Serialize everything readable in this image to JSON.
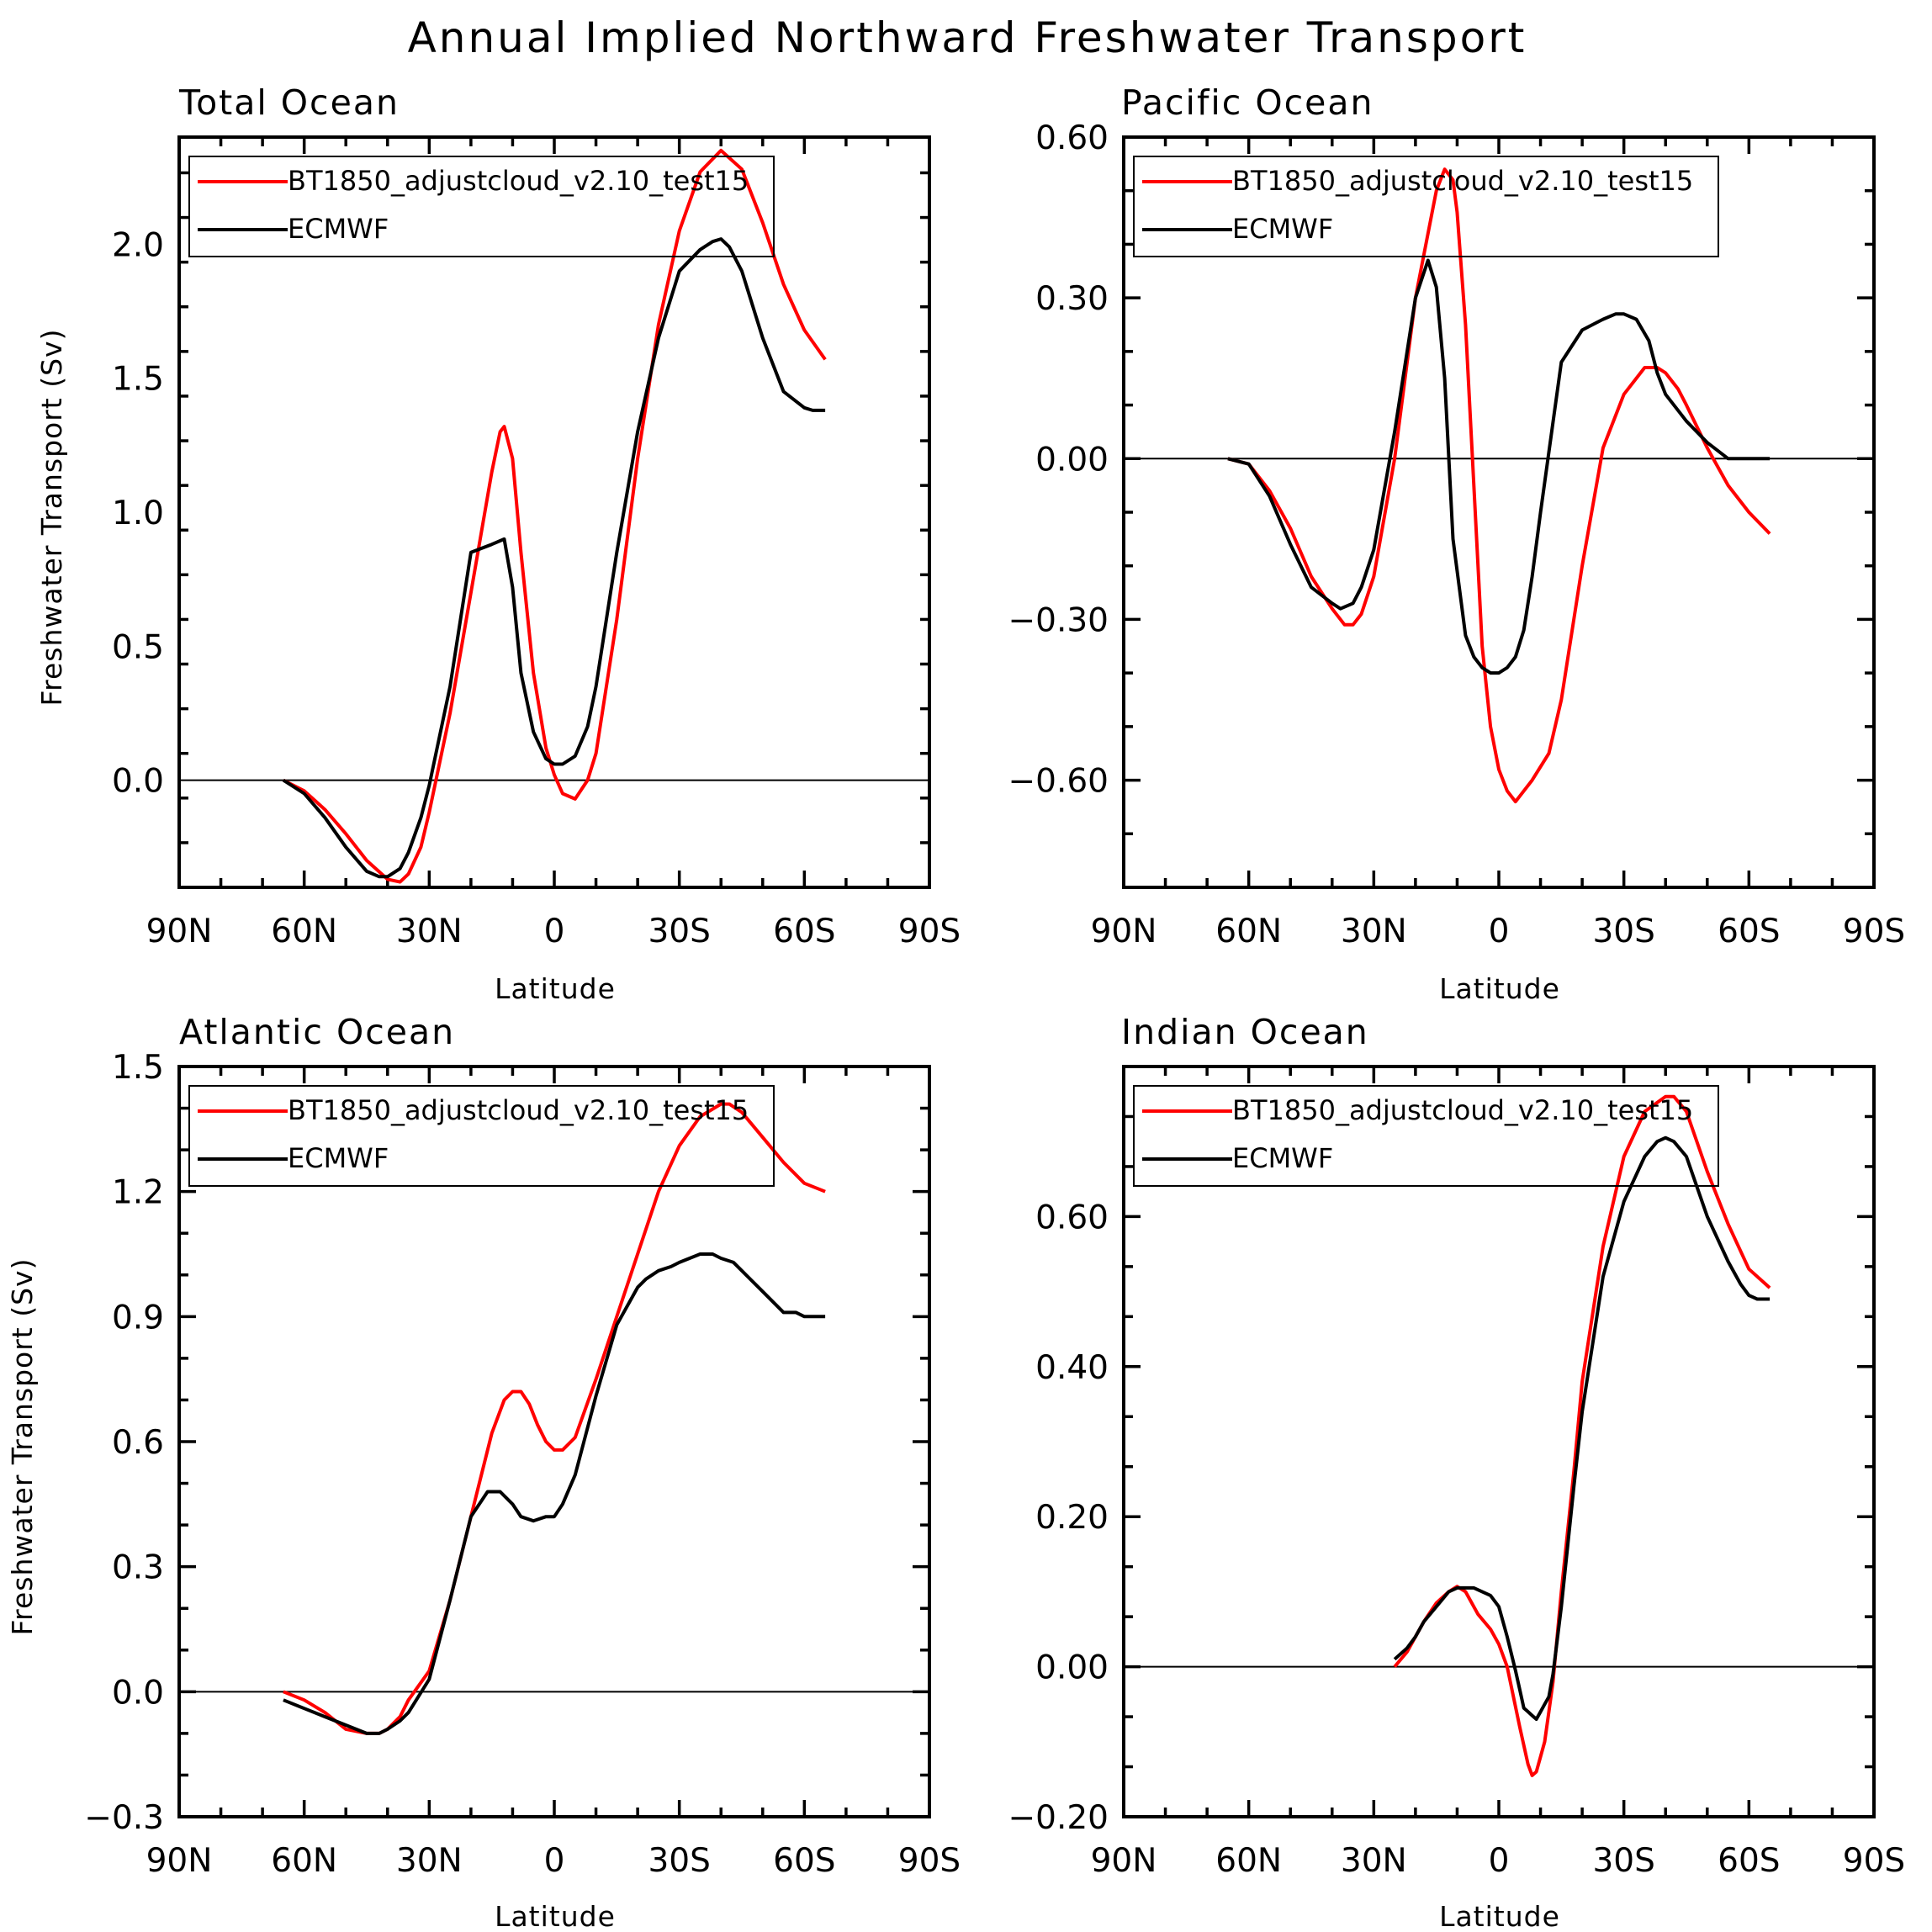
{
  "figure_title": "Annual Implied Northward Freshwater Transport",
  "colors": {
    "model": "#ff0000",
    "obs": "#000000"
  },
  "chart_data": [
    {
      "type": "line",
      "title": "Total Ocean",
      "xlabel": "Latitude",
      "ylabel": "Freshwater Transport (Sv)",
      "xlim": [
        90,
        -90
      ],
      "ylim": [
        -0.4,
        2.4
      ],
      "yticks": [
        0.0,
        0.5,
        1.0,
        1.5,
        2.0
      ],
      "ytick_labels": [
        "0.0",
        "0.5",
        "1.0",
        "1.5",
        "2.0"
      ],
      "xticks": [
        90,
        60,
        30,
        0,
        -30,
        -60,
        -90
      ],
      "xtick_labels": [
        "90N",
        "60N",
        "30N",
        "0",
        "30S",
        "60S",
        "90S"
      ],
      "legend": "top",
      "series": [
        {
          "name": "BT1850_adjustcloud_v2.10_test15",
          "color": "#ff0000",
          "x": [
            65,
            60,
            55,
            50,
            45,
            40,
            37,
            35,
            32,
            30,
            25,
            20,
            15,
            13,
            12,
            10,
            8,
            5,
            2,
            0,
            -2,
            -5,
            -8,
            -10,
            -15,
            -20,
            -25,
            -30,
            -35,
            -40,
            -45,
            -50,
            -55,
            -60,
            -65
          ],
          "y": [
            0.0,
            -0.04,
            -0.11,
            -0.2,
            -0.3,
            -0.37,
            -0.38,
            -0.35,
            -0.25,
            -0.12,
            0.25,
            0.7,
            1.15,
            1.3,
            1.32,
            1.2,
            0.85,
            0.4,
            0.12,
            0.02,
            -0.05,
            -0.07,
            0.0,
            0.1,
            0.6,
            1.2,
            1.7,
            2.05,
            2.27,
            2.35,
            2.28,
            2.08,
            1.85,
            1.68,
            1.57
          ]
        },
        {
          "name": "ECMWF",
          "color": "#000000",
          "x": [
            65,
            60,
            55,
            50,
            45,
            42,
            40,
            37,
            35,
            32,
            30,
            25,
            20,
            15,
            12,
            10,
            8,
            5,
            2,
            0,
            -2,
            -5,
            -8,
            -10,
            -15,
            -20,
            -25,
            -30,
            -35,
            -38,
            -40,
            -42,
            -45,
            -50,
            -55,
            -60,
            -62,
            -65
          ],
          "y": [
            0.0,
            -0.05,
            -0.14,
            -0.25,
            -0.34,
            -0.36,
            -0.36,
            -0.33,
            -0.27,
            -0.14,
            -0.02,
            0.35,
            0.85,
            0.88,
            0.9,
            0.72,
            0.4,
            0.18,
            0.08,
            0.06,
            0.06,
            0.09,
            0.2,
            0.35,
            0.85,
            1.3,
            1.65,
            1.9,
            1.98,
            2.01,
            2.02,
            1.99,
            1.9,
            1.65,
            1.45,
            1.39,
            1.38,
            1.38
          ]
        }
      ]
    },
    {
      "type": "line",
      "title": "Pacific Ocean",
      "xlabel": "Latitude",
      "ylabel": "",
      "xlim": [
        90,
        -90
      ],
      "ylim": [
        -0.8,
        0.6
      ],
      "yticks": [
        -0.6,
        -0.3,
        0.0,
        0.3,
        0.6
      ],
      "ytick_labels": [
        "−0.60",
        "−0.30",
        "0.00",
        "0.30",
        "0.60"
      ],
      "xticks": [
        90,
        60,
        30,
        0,
        -30,
        -60,
        -90
      ],
      "xtick_labels": [
        "90N",
        "60N",
        "30N",
        "0",
        "30S",
        "60S",
        "90S"
      ],
      "legend": "top",
      "series": [
        {
          "name": "BT1850_adjustcloud_v2.10_test15",
          "color": "#ff0000",
          "x": [
            65,
            60,
            55,
            50,
            45,
            40,
            37,
            35,
            33,
            30,
            25,
            20,
            15,
            13,
            11,
            10,
            8,
            6,
            4,
            2,
            0,
            -2,
            -4,
            -5,
            -8,
            -12,
            -15,
            -20,
            -25,
            -30,
            -35,
            -38,
            -40,
            -43,
            -45,
            -50,
            -55,
            -60,
            -65
          ],
          "y": [
            0.0,
            -0.01,
            -0.06,
            -0.13,
            -0.22,
            -0.28,
            -0.31,
            -0.31,
            -0.29,
            -0.22,
            0.0,
            0.3,
            0.5,
            0.54,
            0.52,
            0.46,
            0.25,
            -0.05,
            -0.35,
            -0.5,
            -0.58,
            -0.62,
            -0.64,
            -0.63,
            -0.6,
            -0.55,
            -0.45,
            -0.2,
            0.02,
            0.12,
            0.17,
            0.17,
            0.16,
            0.13,
            0.1,
            0.02,
            -0.05,
            -0.1,
            -0.14
          ]
        },
        {
          "name": "ECMWF",
          "color": "#000000",
          "x": [
            65,
            60,
            55,
            50,
            45,
            40,
            38,
            35,
            33,
            30,
            25,
            20,
            17,
            15,
            13,
            11,
            8,
            6,
            4,
            2,
            0,
            -2,
            -4,
            -6,
            -8,
            -10,
            -15,
            -20,
            -25,
            -28,
            -30,
            -33,
            -36,
            -38,
            -40,
            -45,
            -50,
            -55,
            -60,
            -63,
            -65
          ],
          "y": [
            0.0,
            -0.01,
            -0.07,
            -0.16,
            -0.24,
            -0.27,
            -0.28,
            -0.27,
            -0.24,
            -0.17,
            0.05,
            0.3,
            0.37,
            0.32,
            0.15,
            -0.15,
            -0.33,
            -0.37,
            -0.39,
            -0.4,
            -0.4,
            -0.39,
            -0.37,
            -0.32,
            -0.22,
            -0.1,
            0.18,
            0.24,
            0.26,
            0.27,
            0.27,
            0.26,
            0.22,
            0.16,
            0.12,
            0.07,
            0.03,
            0.0,
            0.0,
            0.0,
            0.0
          ]
        }
      ]
    },
    {
      "type": "line",
      "title": "Atlantic Ocean",
      "xlabel": "Latitude",
      "ylabel": "Freshwater Transport (Sv)",
      "xlim": [
        90,
        -90
      ],
      "ylim": [
        -0.3,
        1.5
      ],
      "yticks": [
        -0.3,
        0.0,
        0.3,
        0.6,
        0.9,
        1.2,
        1.5
      ],
      "ytick_labels": [
        "−0.3",
        "0.0",
        "0.3",
        "0.6",
        "0.9",
        "1.2",
        "1.5"
      ],
      "xticks": [
        90,
        60,
        30,
        0,
        -30,
        -60,
        -90
      ],
      "xtick_labels": [
        "90N",
        "60N",
        "30N",
        "0",
        "30S",
        "60S",
        "90S"
      ],
      "legend": "top",
      "series": [
        {
          "name": "BT1850_adjustcloud_v2.10_test15",
          "color": "#ff0000",
          "x": [
            65,
            60,
            55,
            50,
            45,
            42,
            40,
            37,
            35,
            30,
            25,
            20,
            15,
            12,
            10,
            8,
            6,
            4,
            2,
            0,
            -2,
            -5,
            -10,
            -15,
            -20,
            -25,
            -30,
            -35,
            -40,
            -42,
            -45,
            -50,
            -55,
            -60,
            -65
          ],
          "y": [
            0.0,
            -0.02,
            -0.05,
            -0.09,
            -0.1,
            -0.1,
            -0.09,
            -0.06,
            -0.02,
            0.05,
            0.22,
            0.42,
            0.62,
            0.7,
            0.72,
            0.72,
            0.69,
            0.64,
            0.6,
            0.58,
            0.58,
            0.61,
            0.75,
            0.9,
            1.05,
            1.2,
            1.31,
            1.38,
            1.41,
            1.41,
            1.39,
            1.33,
            1.27,
            1.22,
            1.2
          ]
        },
        {
          "name": "ECMWF",
          "color": "#000000",
          "x": [
            65,
            60,
            55,
            50,
            45,
            42,
            40,
            37,
            35,
            30,
            25,
            20,
            16,
            15,
            13,
            10,
            8,
            5,
            2,
            0,
            -2,
            -5,
            -10,
            -15,
            -20,
            -22,
            -25,
            -28,
            -30,
            -35,
            -38,
            -40,
            -43,
            -45,
            -50,
            -55,
            -58,
            -60,
            -62,
            -65
          ],
          "y": [
            -0.02,
            -0.04,
            -0.06,
            -0.08,
            -0.1,
            -0.1,
            -0.09,
            -0.07,
            -0.05,
            0.03,
            0.22,
            0.42,
            0.48,
            0.48,
            0.48,
            0.45,
            0.42,
            0.41,
            0.42,
            0.42,
            0.45,
            0.52,
            0.71,
            0.88,
            0.97,
            0.99,
            1.01,
            1.02,
            1.03,
            1.05,
            1.05,
            1.04,
            1.03,
            1.01,
            0.96,
            0.91,
            0.91,
            0.9,
            0.9,
            0.9
          ]
        }
      ]
    },
    {
      "type": "line",
      "title": "Indian Ocean",
      "xlabel": "Latitude",
      "ylabel": "",
      "xlim": [
        90,
        -90
      ],
      "ylim": [
        -0.2,
        0.8
      ],
      "yticks": [
        -0.2,
        0.0,
        0.2,
        0.4,
        0.6
      ],
      "ytick_labels": [
        "−0.20",
        "0.00",
        "0.20",
        "0.40",
        "0.60"
      ],
      "xticks": [
        90,
        60,
        30,
        0,
        -30,
        -60,
        -90
      ],
      "xtick_labels": [
        "90N",
        "60N",
        "30N",
        "0",
        "30S",
        "60S",
        "90S"
      ],
      "legend": "top",
      "series": [
        {
          "name": "BT1850_adjustcloud_v2.10_test15",
          "color": "#ff0000",
          "x": [
            25,
            22,
            20,
            18,
            15,
            12,
            10,
            8,
            5,
            2,
            0,
            -2,
            -5,
            -7,
            -8,
            -9,
            -10,
            -11,
            -12,
            -13,
            -15,
            -18,
            -20,
            -25,
            -30,
            -35,
            -40,
            -42,
            -45,
            -50,
            -55,
            -60,
            -65
          ],
          "y": [
            0.0,
            0.02,
            0.04,
            0.06,
            0.085,
            0.1,
            0.107,
            0.1,
            0.07,
            0.05,
            0.03,
            0.0,
            -0.08,
            -0.13,
            -0.145,
            -0.14,
            -0.12,
            -0.1,
            -0.06,
            -0.02,
            0.1,
            0.26,
            0.38,
            0.56,
            0.68,
            0.74,
            0.76,
            0.76,
            0.74,
            0.66,
            0.59,
            0.53,
            0.505
          ]
        },
        {
          "name": "ECMWF",
          "color": "#000000",
          "x": [
            25,
            22,
            20,
            18,
            15,
            12,
            10,
            8,
            6,
            4,
            2,
            0,
            -2,
            -4,
            -5,
            -6,
            -7,
            -8,
            -9,
            -10,
            -11,
            -12,
            -13,
            -15,
            -18,
            -20,
            -25,
            -30,
            -35,
            -38,
            -40,
            -42,
            -45,
            -50,
            -55,
            -58,
            -60,
            -62,
            -65
          ],
          "y": [
            0.01,
            0.025,
            0.04,
            0.06,
            0.08,
            0.1,
            0.105,
            0.105,
            0.105,
            0.1,
            0.095,
            0.08,
            0.04,
            -0.005,
            -0.03,
            -0.055,
            -0.06,
            -0.065,
            -0.07,
            -0.06,
            -0.05,
            -0.04,
            -0.01,
            0.08,
            0.24,
            0.34,
            0.52,
            0.62,
            0.68,
            0.7,
            0.705,
            0.7,
            0.68,
            0.6,
            0.54,
            0.51,
            0.495,
            0.49,
            0.49
          ]
        }
      ]
    }
  ]
}
